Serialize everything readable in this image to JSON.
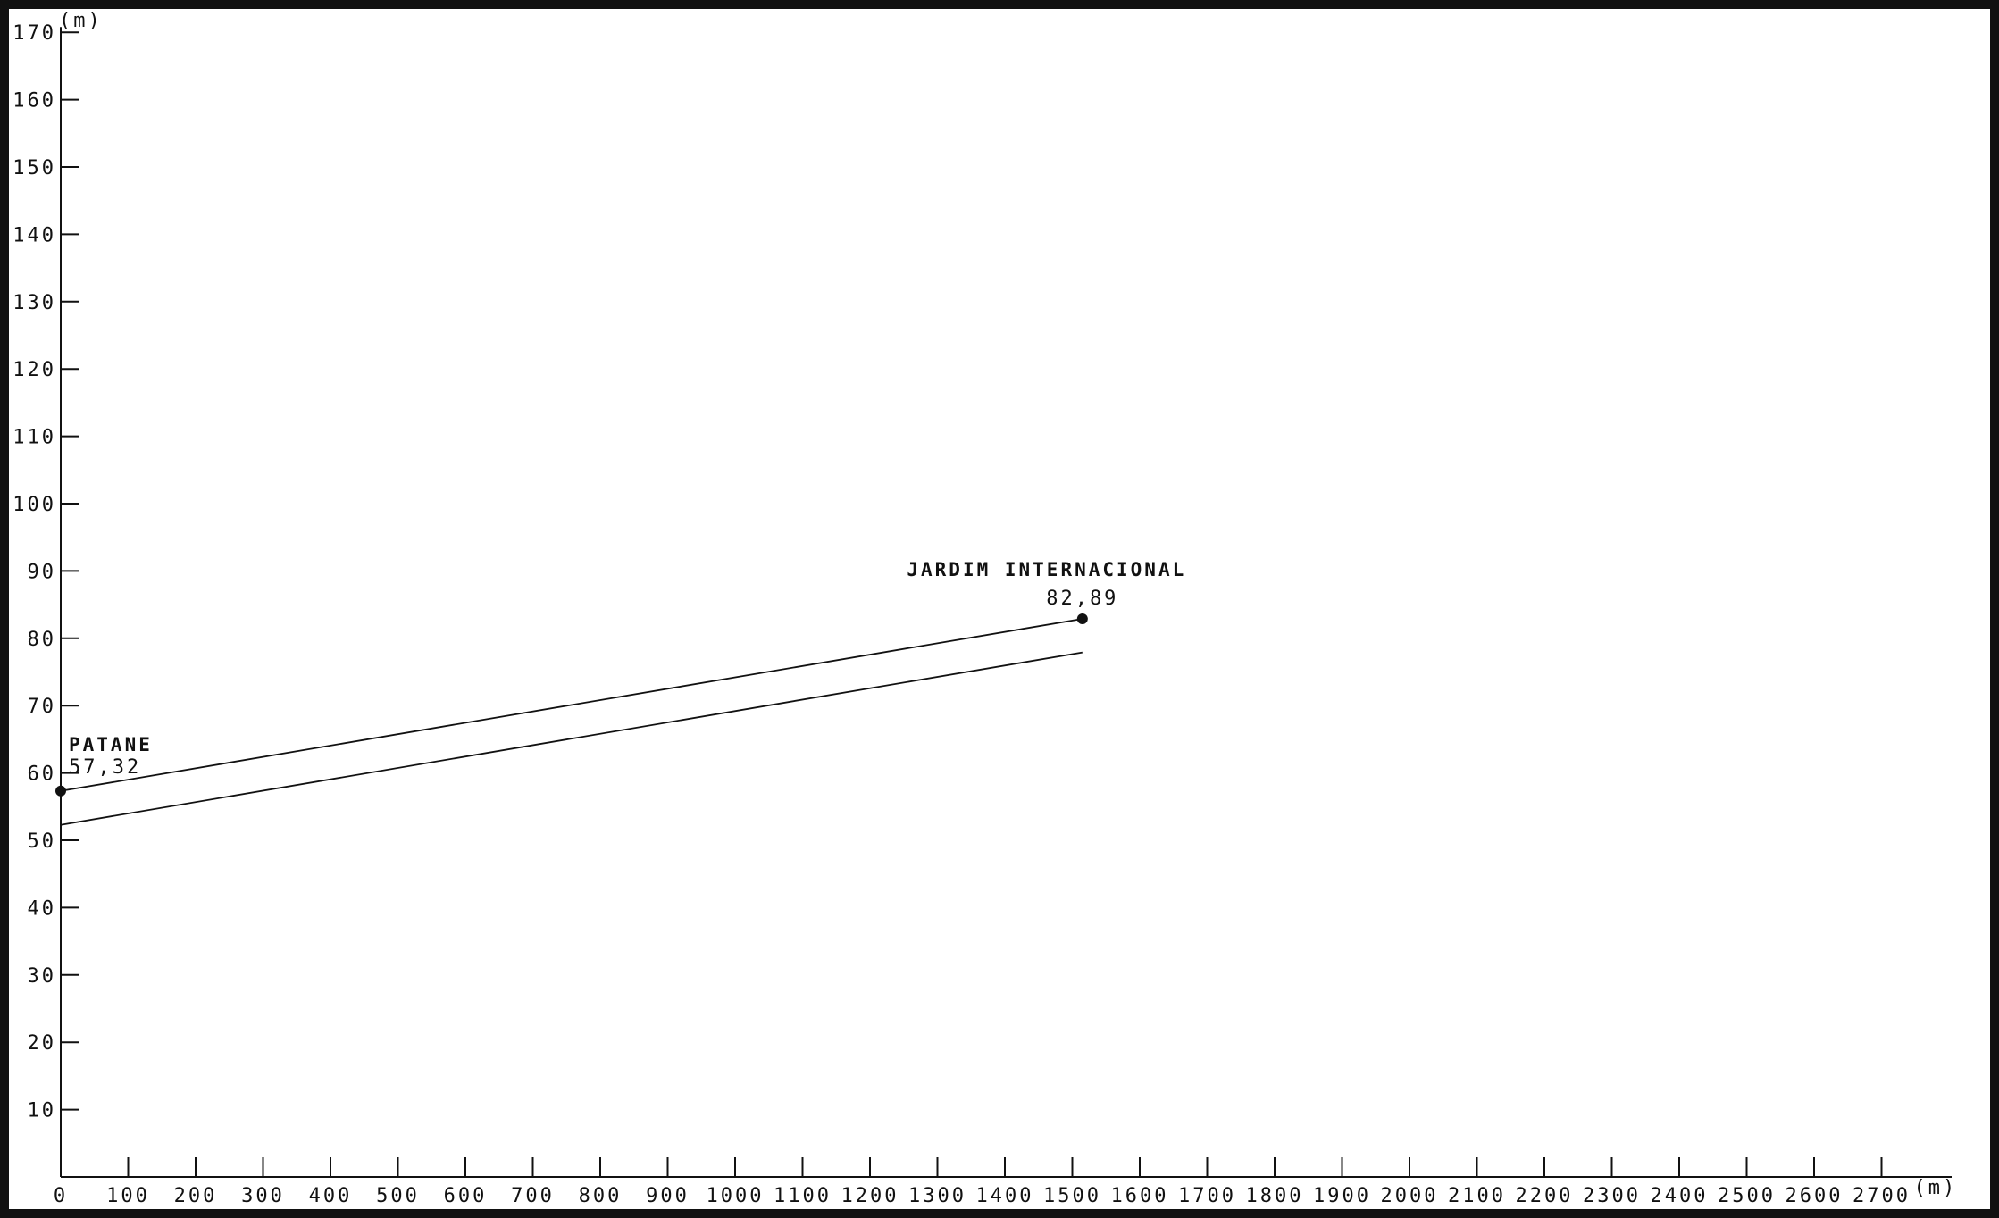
{
  "chart_data": {
    "type": "line",
    "title": "",
    "xlabel": "(m)",
    "ylabel": "(m)",
    "xlim": [
      0,
      2800
    ],
    "ylim": [
      0,
      170
    ],
    "grid": false,
    "x_ticks": [
      "0",
      "100",
      "200",
      "300",
      "400",
      "500",
      "600",
      "700",
      "800",
      "900",
      "1000",
      "1100",
      "1200",
      "1300",
      "1400",
      "1500",
      "1600",
      "1700",
      "1800",
      "1900",
      "2000",
      "2100",
      "2200",
      "2300",
      "2400",
      "2500",
      "2600",
      "2700"
    ],
    "y_ticks": [
      "10",
      "20",
      "30",
      "40",
      "50",
      "60",
      "70",
      "80",
      "90",
      "100",
      "110",
      "120",
      "130",
      "140",
      "150",
      "160",
      "170"
    ],
    "series": [
      {
        "x": [
          0,
          1515
        ],
        "y": [
          57.32,
          82.89
        ]
      },
      {
        "x": [
          0,
          1515
        ],
        "y": [
          52.3,
          77.9
        ]
      }
    ],
    "points": [
      {
        "x": 0,
        "y": 57.32,
        "name": "PATANE",
        "value_label": "57,32"
      },
      {
        "x": 1515,
        "y": 82.89,
        "name": "JARDIM INTERNACIONAL",
        "value_label": "82,89"
      }
    ]
  }
}
